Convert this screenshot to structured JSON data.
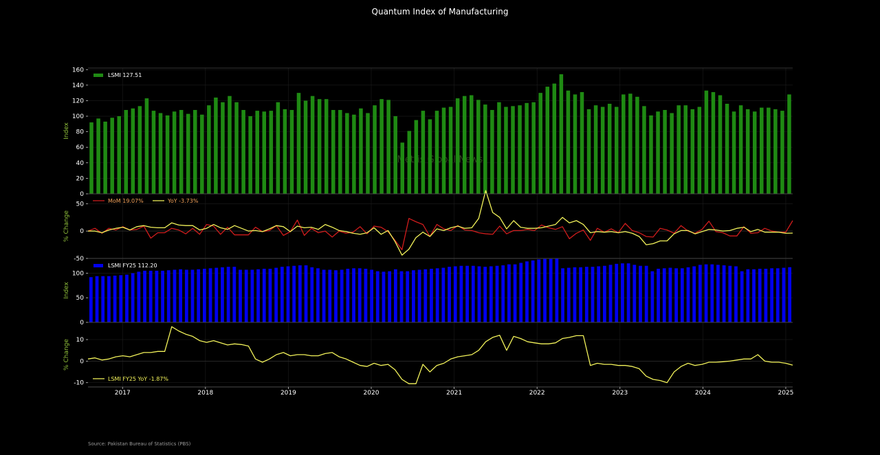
{
  "title": "Quantum Index of Manufacturing",
  "source": "Source: Pakistan Bureau of Statistics (PBS)",
  "watermark": "Mettis Global News",
  "colors": {
    "background": "#000000",
    "lsmi": "#1f8a13",
    "lsmi_fy25": "#0000ee",
    "mom": "#d01c1c",
    "yoy": "#f2f25a",
    "ylabel": "#8fbf3a",
    "axis": "#cccccc"
  },
  "chart_data": [
    {
      "type": "bar",
      "ylabel": "Index",
      "ylim": [
        0,
        162
      ],
      "yticks": [
        0,
        20,
        40,
        60,
        80,
        100,
        120,
        140,
        160
      ],
      "grid": true,
      "legend_position": "top-left",
      "series": [
        {
          "name": "LSMI 127.51",
          "values": [
            92,
            97,
            93,
            98,
            100,
            108,
            110,
            113,
            123,
            107,
            104,
            101,
            106,
            108,
            103,
            108,
            102,
            114,
            124,
            118,
            126,
            118,
            108,
            100,
            107,
            106,
            107,
            118,
            109,
            108,
            130,
            120,
            126,
            122,
            122,
            108,
            108,
            104,
            102,
            110,
            104,
            114,
            122,
            121,
            100,
            66,
            81,
            95,
            107,
            96,
            107,
            111,
            112,
            123,
            126,
            127,
            121,
            115,
            108,
            118,
            112,
            113,
            114,
            117,
            118,
            130,
            138,
            142,
            154,
            133,
            128,
            131,
            109,
            114,
            112,
            116,
            112,
            128,
            129,
            125,
            113,
            101,
            106,
            108,
            104,
            114,
            114,
            109,
            112,
            133,
            131,
            127,
            116,
            106,
            114,
            109,
            106,
            111,
            111,
            109,
            107,
            128
          ]
        }
      ]
    },
    {
      "type": "line",
      "ylabel": "% Change",
      "ylim": [
        -50,
        68
      ],
      "yticks": [
        -50,
        0,
        50
      ],
      "grid": true,
      "legend_position": "top-left",
      "series": [
        {
          "name": "MoM 19.07%",
          "values": [
            0,
            5,
            -4,
            5,
            2,
            8,
            2,
            3,
            9,
            -13,
            -3,
            -3,
            5,
            2,
            -5,
            5,
            -6,
            12,
            9,
            -6,
            7,
            -7,
            -7,
            -7,
            7,
            -1,
            1,
            10,
            -8,
            -1,
            20,
            -8,
            5,
            -3,
            0,
            -11,
            0,
            -4,
            -2,
            8,
            -5,
            9,
            7,
            -1,
            -17,
            -34,
            23,
            17,
            12,
            -10,
            12,
            4,
            1,
            10,
            2,
            1,
            -3,
            -5,
            -6,
            9,
            -5,
            1,
            1,
            3,
            1,
            11,
            6,
            3,
            8,
            -14,
            -4,
            2,
            -17,
            5,
            -2,
            4,
            -3,
            14,
            1,
            -3,
            -10,
            -11,
            5,
            2,
            -4,
            10,
            0,
            -4,
            3,
            18,
            -1,
            -3,
            -9,
            -9,
            8,
            -4,
            -3,
            5,
            0,
            -2,
            -2,
            19.07
          ]
        },
        {
          "name": "YoY -3.73%",
          "values": [
            0,
            0,
            -3,
            2,
            5,
            7,
            2,
            8,
            10,
            7,
            6,
            6,
            15,
            11,
            10,
            10,
            2,
            5,
            12,
            6,
            3,
            10,
            5,
            0,
            1,
            -1,
            4,
            10,
            8,
            -1,
            9,
            6,
            7,
            3,
            12,
            7,
            1,
            -1,
            -4,
            -6,
            -3,
            6,
            -6,
            1,
            -19,
            -44,
            -33,
            -12,
            -2,
            -10,
            4,
            1,
            6,
            9,
            5,
            6,
            23,
            74,
            34,
            25,
            4,
            19,
            7,
            5,
            5,
            6,
            9,
            12,
            25,
            15,
            19,
            12,
            -3,
            -1,
            -2,
            -1,
            -3,
            -1,
            -4,
            -10,
            -25,
            -23,
            -18,
            -18,
            -5,
            1,
            1,
            -5,
            -1,
            3,
            2,
            0,
            1,
            5,
            7,
            -1,
            3,
            -2,
            -2,
            -2,
            -4,
            -3.73
          ]
        }
      ]
    },
    {
      "type": "bar",
      "ylabel": "Index",
      "ylim": [
        0,
        130
      ],
      "yticks": [
        0,
        50,
        100
      ],
      "grid": true,
      "legend_position": "top-left",
      "series": [
        {
          "name": "LSMI FY25 112.20",
          "values": [
            92,
            94,
            94,
            94,
            95,
            96,
            97,
            100,
            103,
            105,
            105,
            105,
            105,
            106,
            107,
            108,
            107,
            107,
            108,
            109,
            110,
            111,
            112,
            113,
            113,
            107,
            107,
            107,
            108,
            109,
            109,
            111,
            113,
            114,
            115,
            116,
            116,
            112,
            110,
            107,
            107,
            106,
            107,
            109,
            110,
            110,
            109,
            107,
            104,
            103,
            104,
            108,
            104,
            104,
            106,
            107,
            108,
            109,
            110,
            111,
            113,
            114,
            115,
            115,
            115,
            114,
            113,
            114,
            115,
            116,
            118,
            118,
            121,
            124,
            126,
            128,
            129,
            129,
            130,
            110,
            111,
            112,
            112,
            113,
            113,
            114,
            115,
            117,
            119,
            120,
            120,
            117,
            115,
            115,
            104,
            109,
            110,
            111,
            110,
            110,
            112,
            114,
            117,
            118,
            118,
            117,
            116,
            115,
            114,
            104,
            108,
            108,
            109,
            109,
            110,
            110,
            111,
            112.2
          ]
        }
      ]
    },
    {
      "type": "line",
      "xlim": [
        "2016-07",
        "2025-01"
      ],
      "xticks": [
        "2017",
        "2018",
        "2019",
        "2020",
        "2021",
        "2022",
        "2023",
        "2024",
        "2025"
      ],
      "ylabel": "% Change",
      "ylim": [
        -12,
        18
      ],
      "yticks": [
        -10,
        0,
        10
      ],
      "grid": true,
      "legend_position": "bottom-left",
      "series": [
        {
          "name": "LSMI FY25 YoY -1.87%",
          "values": [
            1,
            1.5,
            0.5,
            1,
            2,
            2.5,
            2,
            3,
            4,
            4,
            4.5,
            4.5,
            16,
            14,
            12.5,
            11.5,
            9.5,
            8.7,
            9.5,
            8.5,
            7.5,
            8,
            7.7,
            7,
            1,
            -0.5,
            1,
            3,
            4,
            2.5,
            3,
            3,
            2.5,
            2.5,
            3.5,
            4,
            2,
            1,
            -0.5,
            -2,
            -2.5,
            -1,
            -2,
            -1.5,
            -4,
            -8.5,
            -10.5,
            -10.5,
            -1.5,
            -5,
            -2,
            -1,
            1,
            2,
            2.5,
            3,
            5,
            9,
            11,
            12,
            5,
            11.5,
            10.5,
            9,
            8.5,
            8,
            8,
            8.5,
            10.5,
            11,
            11.8,
            11.8,
            -2,
            -1,
            -1.5,
            -1.5,
            -2,
            -2,
            -2.5,
            -3.5,
            -7,
            -8.5,
            -9,
            -10,
            -5,
            -2.5,
            -1,
            -2,
            -1.5,
            -0.5,
            -0.5,
            -0.3,
            0,
            0.5,
            1,
            1,
            3,
            0,
            -0.5,
            -0.5,
            -1,
            -1.87
          ]
        }
      ]
    }
  ]
}
